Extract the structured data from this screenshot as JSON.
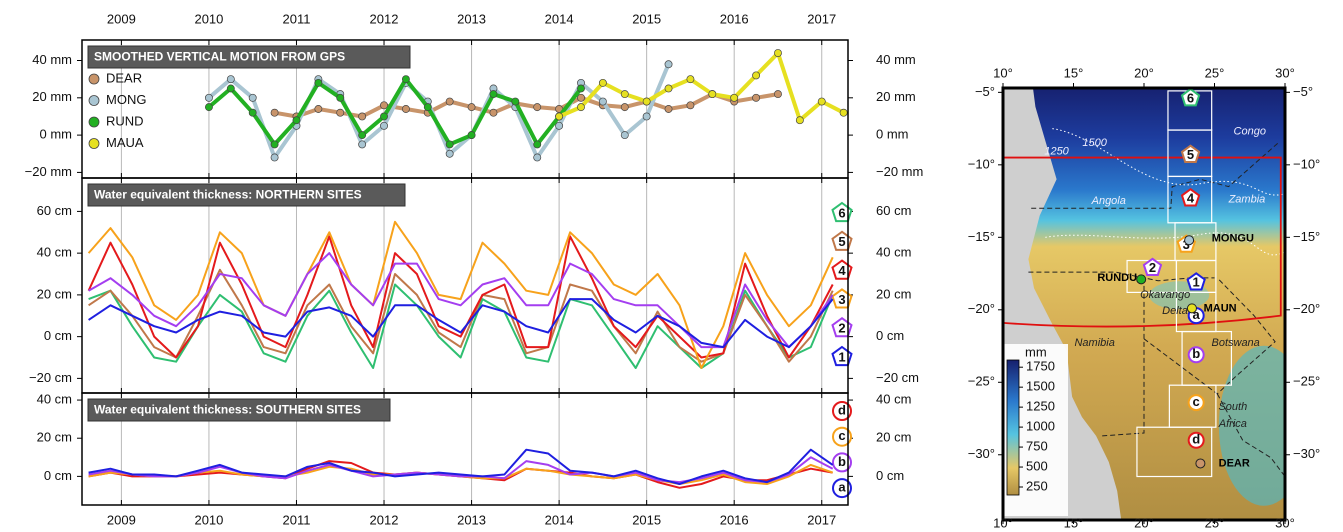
{
  "chart_data": [
    {
      "type": "line",
      "title": "SMOOTHED VERTICAL MOTION FROM GPS",
      "markers": true,
      "legend_marker": "circle",
      "xlim": [
        2008.55,
        2017.3
      ],
      "xticks": [
        2009,
        2010,
        2011,
        2012,
        2013,
        2014,
        2015,
        2016,
        2017
      ],
      "ylim": [
        -23,
        51
      ],
      "yticks": [
        {
          "value": -20,
          "label": "−20 mm"
        },
        {
          "value": 0,
          "label": "0 mm"
        },
        {
          "value": 20,
          "label": "20 mm"
        },
        {
          "value": 40,
          "label": "40 mm"
        }
      ],
      "grid": true,
      "series": [
        {
          "name": "DEAR",
          "color": "#c8946a",
          "x": [
            2010.75,
            2011,
            2011.25,
            2011.5,
            2011.75,
            2012,
            2012.25,
            2012.5,
            2012.75,
            2013,
            2013.25,
            2013.5,
            2013.75,
            2014,
            2014.25,
            2014.5,
            2014.75,
            2015,
            2015.25,
            2015.5,
            2015.75,
            2016,
            2016.25,
            2016.5
          ],
          "values": [
            12,
            10,
            14,
            12,
            10,
            16,
            14,
            12,
            18,
            15,
            12,
            17,
            15,
            14,
            20,
            16,
            15,
            18,
            14,
            16,
            22,
            18,
            20,
            22
          ]
        },
        {
          "name": "MONG",
          "color": "#a9c5d2",
          "x": [
            2010,
            2010.25,
            2010.5,
            2010.75,
            2011,
            2011.25,
            2011.5,
            2011.75,
            2012,
            2012.25,
            2012.5,
            2012.75,
            2013,
            2013.25,
            2013.5,
            2013.75,
            2014,
            2014.25,
            2014.5,
            2014.75,
            2015,
            2015.25
          ],
          "values": [
            20,
            30,
            20,
            -12,
            5,
            30,
            22,
            -5,
            5,
            28,
            18,
            -10,
            0,
            25,
            15,
            -12,
            5,
            28,
            18,
            0,
            10,
            38
          ]
        },
        {
          "name": "RUND",
          "color": "#22b022",
          "x": [
            2010,
            2010.25,
            2010.5,
            2010.75,
            2011,
            2011.25,
            2011.5,
            2011.75,
            2012,
            2012.25,
            2012.5,
            2012.75,
            2013,
            2013.25,
            2013.5,
            2013.75,
            2014,
            2014.25
          ],
          "values": [
            15,
            25,
            12,
            -5,
            8,
            28,
            20,
            0,
            10,
            30,
            15,
            -5,
            0,
            22,
            18,
            -5,
            10,
            25
          ]
        },
        {
          "name": "MAUA",
          "color": "#e6e020",
          "x": [
            2014,
            2014.25,
            2014.5,
            2014.75,
            2015,
            2015.25,
            2015.5,
            2015.75,
            2016,
            2016.25,
            2016.5,
            2016.75,
            2017,
            2017.25
          ],
          "values": [
            10,
            15,
            28,
            22,
            18,
            25,
            30,
            22,
            20,
            32,
            44,
            8,
            18,
            12
          ]
        }
      ]
    },
    {
      "type": "line",
      "title": "Water equivalent thickness: NORTHERN SITES",
      "markers": false,
      "legend_marker": "pentagon",
      "xlim": [
        2008.55,
        2017.3
      ],
      "xticks": [
        2009,
        2010,
        2011,
        2012,
        2013,
        2014,
        2015,
        2016,
        2017
      ],
      "ylim": [
        -27,
        76
      ],
      "yticks": [
        {
          "value": -20,
          "label": "−20 cm"
        },
        {
          "value": 0,
          "label": "0 cm"
        },
        {
          "value": 20,
          "label": "20 cm"
        },
        {
          "value": 40,
          "label": "40 cm"
        },
        {
          "value": 60,
          "label": "60 cm"
        }
      ],
      "grid": true,
      "x": [
        2008.625,
        2008.875,
        2009.125,
        2009.375,
        2009.625,
        2009.875,
        2010.125,
        2010.375,
        2010.625,
        2010.875,
        2011.125,
        2011.375,
        2011.625,
        2011.875,
        2012.125,
        2012.375,
        2012.625,
        2012.875,
        2013.125,
        2013.375,
        2013.625,
        2013.875,
        2014.125,
        2014.375,
        2014.625,
        2014.875,
        2015.125,
        2015.375,
        2015.625,
        2015.875,
        2016.125,
        2016.375,
        2016.625,
        2016.875,
        2017.125
      ],
      "series": [
        {
          "name": "6",
          "color": "#2fbf71",
          "values": [
            18,
            22,
            5,
            -10,
            -12,
            5,
            20,
            12,
            -8,
            -12,
            10,
            22,
            2,
            -15,
            25,
            15,
            0,
            -10,
            18,
            12,
            -10,
            -12,
            18,
            15,
            0,
            -15,
            5,
            -5,
            -15,
            -8,
            22,
            5,
            -10,
            -5,
            20
          ]
        },
        {
          "name": "5",
          "color": "#c0784a",
          "values": [
            15,
            22,
            10,
            -5,
            -10,
            10,
            32,
            15,
            -5,
            -8,
            15,
            25,
            5,
            -8,
            30,
            20,
            2,
            -5,
            20,
            18,
            -8,
            -5,
            25,
            22,
            5,
            -8,
            12,
            -5,
            -12,
            -8,
            20,
            5,
            -12,
            0,
            22
          ]
        },
        {
          "name": "4",
          "color": "#e41a1c",
          "values": [
            22,
            45,
            25,
            0,
            -10,
            5,
            45,
            25,
            0,
            -5,
            20,
            48,
            15,
            -5,
            40,
            30,
            5,
            0,
            20,
            25,
            -5,
            -5,
            48,
            28,
            5,
            -5,
            10,
            0,
            -10,
            -8,
            35,
            10,
            -10,
            5,
            25
          ]
        },
        {
          "name": "3",
          "color": "#f7a21b",
          "values": [
            40,
            52,
            38,
            15,
            8,
            20,
            50,
            40,
            15,
            10,
            30,
            50,
            25,
            15,
            55,
            40,
            20,
            18,
            45,
            35,
            22,
            20,
            50,
            40,
            25,
            20,
            30,
            15,
            -15,
            5,
            40,
            20,
            5,
            15,
            38
          ]
        },
        {
          "name": "2",
          "color": "#a43ef0",
          "values": [
            22,
            28,
            20,
            10,
            5,
            15,
            30,
            28,
            15,
            10,
            30,
            40,
            25,
            15,
            35,
            35,
            18,
            15,
            25,
            28,
            15,
            15,
            35,
            30,
            18,
            15,
            15,
            5,
            -5,
            -5,
            25,
            8,
            -5,
            5,
            20
          ]
        },
        {
          "name": "1",
          "color": "#1f1fe0",
          "values": [
            8,
            15,
            10,
            5,
            2,
            8,
            12,
            10,
            2,
            0,
            12,
            14,
            10,
            0,
            15,
            15,
            8,
            2,
            15,
            12,
            5,
            2,
            18,
            18,
            8,
            2,
            10,
            5,
            -3,
            -5,
            8,
            0,
            -5,
            5,
            18
          ]
        }
      ]
    },
    {
      "type": "line",
      "title": "Water equivalent thickness: SOUTHERN SITES",
      "markers": false,
      "legend_marker": "circle",
      "xlim": [
        2008.55,
        2017.3
      ],
      "xticks": [
        2009,
        2010,
        2011,
        2012,
        2013,
        2014,
        2015,
        2016,
        2017
      ],
      "ylim": [
        -15,
        43.7
      ],
      "yticks": [
        {
          "value": 0,
          "label": "0 cm"
        },
        {
          "value": 20,
          "label": "20 cm"
        },
        {
          "value": 40,
          "label": "40 cm"
        }
      ],
      "grid": true,
      "x": [
        2008.625,
        2008.875,
        2009.125,
        2009.375,
        2009.625,
        2009.875,
        2010.125,
        2010.375,
        2010.625,
        2010.875,
        2011.125,
        2011.375,
        2011.625,
        2011.875,
        2012.125,
        2012.375,
        2012.625,
        2012.875,
        2013.125,
        2013.375,
        2013.625,
        2013.875,
        2014.125,
        2014.375,
        2014.625,
        2014.875,
        2015.125,
        2015.375,
        2015.625,
        2015.875,
        2016.125,
        2016.375,
        2016.625,
        2016.875,
        2017.125
      ],
      "series": [
        {
          "name": "d",
          "color": "#e41a1c",
          "values": [
            0,
            2,
            0,
            0,
            0,
            1,
            2,
            1,
            0,
            -1,
            4,
            8,
            7,
            2,
            1,
            2,
            1,
            0,
            -1,
            -2,
            4,
            3,
            2,
            0,
            -1,
            1,
            -3,
            -6,
            -4,
            0,
            -2,
            -2,
            1,
            4,
            2
          ]
        },
        {
          "name": "c",
          "color": "#f7a21b",
          "values": [
            0,
            2,
            1,
            0,
            0,
            2,
            3,
            1,
            0,
            0,
            2,
            5,
            4,
            1,
            1,
            2,
            1,
            0,
            -1,
            -1,
            4,
            3,
            1,
            0,
            -1,
            1,
            -2,
            -4,
            -2,
            1,
            -3,
            -4,
            0,
            6,
            2
          ]
        },
        {
          "name": "b",
          "color": "#a43ef0",
          "values": [
            1,
            3,
            1,
            0,
            0,
            2,
            5,
            2,
            0,
            -1,
            3,
            6,
            3,
            0,
            1,
            2,
            1,
            0,
            0,
            -1,
            8,
            6,
            1,
            2,
            0,
            2,
            -2,
            -3,
            -1,
            2,
            -2,
            -3,
            1,
            10,
            4
          ]
        },
        {
          "name": "a",
          "color": "#1f1fe0",
          "values": [
            2,
            4,
            1,
            1,
            0,
            3,
            6,
            2,
            1,
            0,
            5,
            7,
            3,
            2,
            0,
            1,
            2,
            1,
            0,
            1,
            14,
            12,
            3,
            2,
            0,
            3,
            -1,
            -4,
            0,
            3,
            -1,
            -3,
            2,
            14,
            6
          ]
        }
      ]
    },
    {
      "type": "map",
      "xlim": [
        10,
        30
      ],
      "xticks": [
        {
          "value": 10,
          "label": "10°"
        },
        {
          "value": 15,
          "label": "15°"
        },
        {
          "value": 20,
          "label": "20°"
        },
        {
          "value": 25,
          "label": "25°"
        },
        {
          "value": 30,
          "label": "30°"
        }
      ],
      "ylim": [
        -34.5,
        -4.7
      ],
      "yticks": [
        {
          "value": -5,
          "label": "−5°"
        },
        {
          "value": -10,
          "label": "−10°"
        },
        {
          "value": -15,
          "label": "−15°"
        },
        {
          "value": -20,
          "label": "−20°"
        },
        {
          "value": -25,
          "label": "−25°"
        },
        {
          "value": -30,
          "label": "−30°"
        }
      ],
      "colorbar": {
        "title": "mm",
        "clim": [
          150,
          1840
        ],
        "ticks": [
          250,
          500,
          750,
          1000,
          1250,
          1500,
          1750
        ]
      },
      "labels": [
        "Congo",
        "Angola",
        "Zambia",
        "Namibia",
        "Botswana",
        "South",
        "Africa",
        "Okavango",
        "Delta",
        "MONGU",
        "RUNDU",
        "MAUN",
        "DEAR",
        "1500",
        "1250"
      ]
    }
  ]
}
